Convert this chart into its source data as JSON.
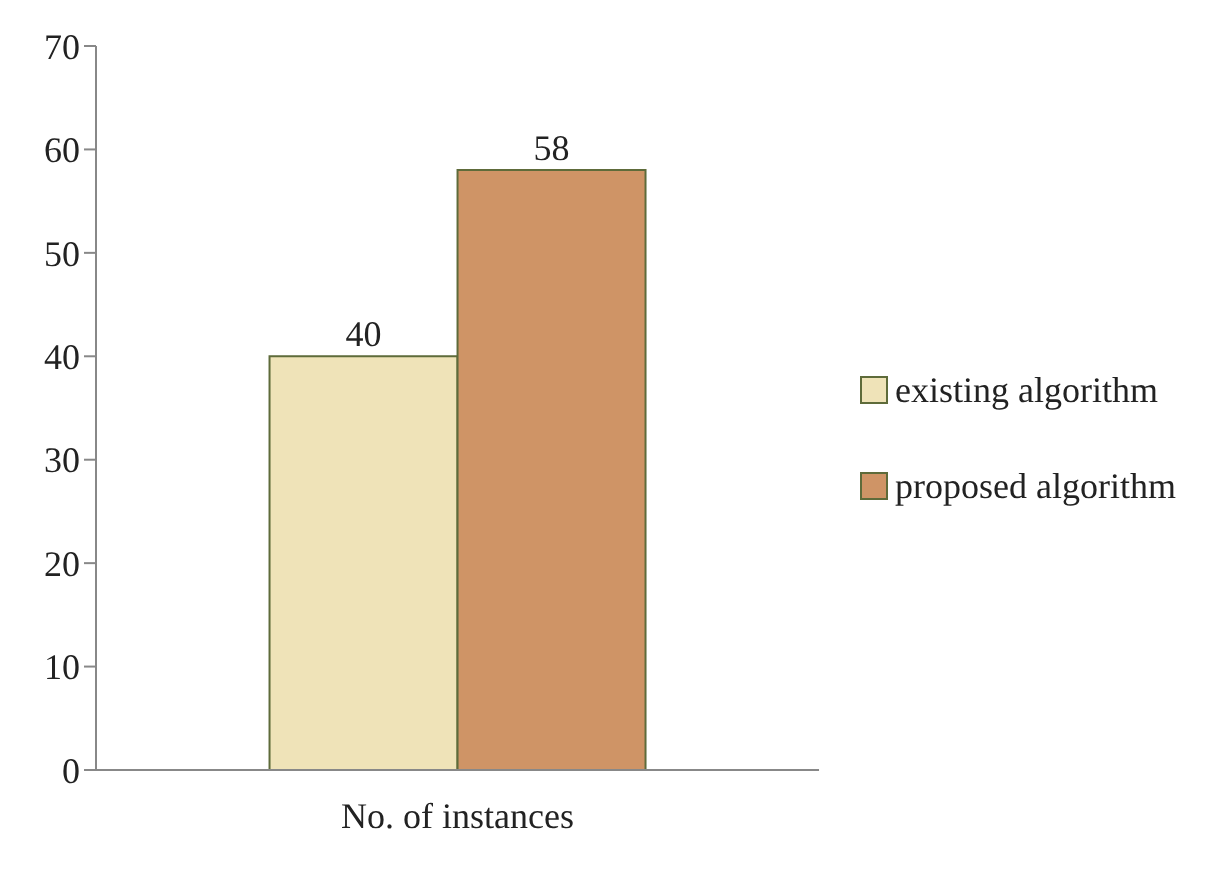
{
  "chart_data": {
    "type": "bar",
    "categories": [
      "No. of instances"
    ],
    "series": [
      {
        "name": "existing algorithm",
        "color": "#efe3b8",
        "values": [
          40
        ]
      },
      {
        "name": "proposed algorithm",
        "color": "#cf9466",
        "values": [
          58
        ]
      }
    ],
    "ylim": [
      0,
      70
    ],
    "yticks": [
      0,
      10,
      20,
      30,
      40,
      50,
      60,
      70
    ],
    "data_labels": true,
    "grid": false,
    "legend": "right"
  }
}
